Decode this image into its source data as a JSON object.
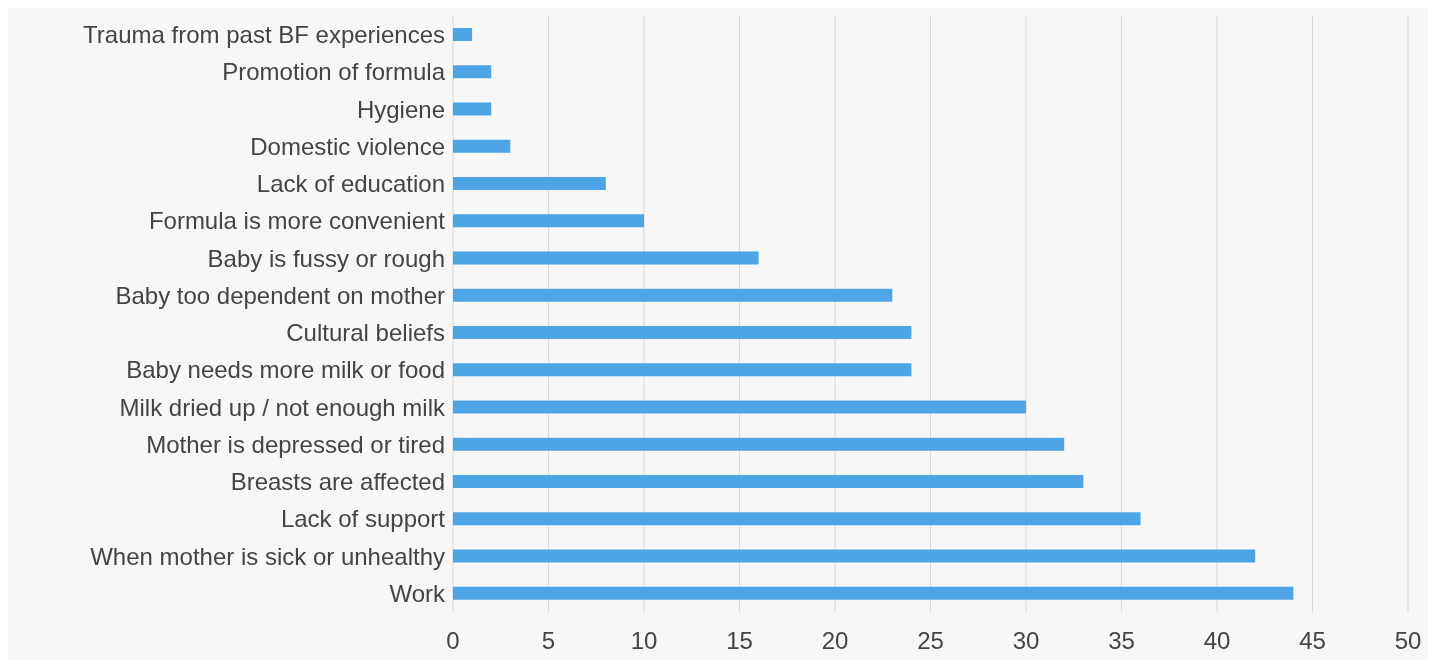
{
  "chart_data": {
    "type": "bar",
    "orientation": "horizontal",
    "categories": [
      "Trauma from past BF experiences",
      "Promotion of formula",
      "Hygiene",
      "Domestic violence",
      "Lack of education",
      "Formula is more convenient",
      "Baby is fussy or rough",
      "Baby too dependent on mother",
      "Cultural beliefs",
      "Baby needs more milk or food",
      "Milk dried up / not enough milk",
      "Mother is depressed or tired",
      "Breasts are affected",
      "Lack of support",
      "When mother is sick or unhealthy",
      "Work"
    ],
    "values": [
      1,
      2,
      2,
      3,
      8,
      10,
      16,
      23,
      24,
      24,
      30,
      32,
      33,
      36,
      42,
      44
    ],
    "color": "#4ea5e6",
    "xlim": [
      0,
      50
    ],
    "xticks": [
      0,
      5,
      10,
      15,
      20,
      25,
      30,
      35,
      40,
      45,
      50
    ],
    "grid": "x"
  }
}
